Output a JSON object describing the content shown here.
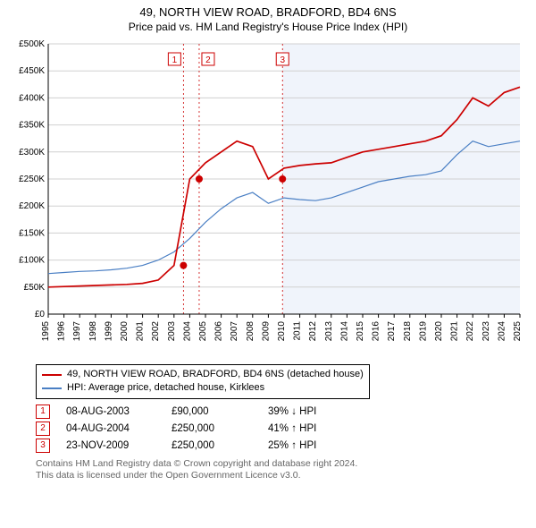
{
  "title_line1": "49, NORTH VIEW ROAD, BRADFORD, BD4 6NS",
  "title_line2": "Price paid vs. HM Land Registry's House Price Index (HPI)",
  "colors": {
    "red": "#cc0000",
    "blue": "#4a7fc4",
    "grid": "#d0d0d0",
    "band": "#f0f4fb",
    "axis": "#000000",
    "footer": "#666666",
    "bg": "#ffffff"
  },
  "chart": {
    "type": "line",
    "x_years": [
      1995,
      1996,
      1997,
      1998,
      1999,
      2000,
      2001,
      2002,
      2003,
      2004,
      2005,
      2006,
      2007,
      2008,
      2009,
      2010,
      2011,
      2012,
      2013,
      2014,
      2015,
      2016,
      2017,
      2018,
      2019,
      2020,
      2021,
      2022,
      2023,
      2024,
      2025
    ],
    "ylim": [
      0,
      500000
    ],
    "ytick_step": 50000,
    "ytick_labels": [
      "£0",
      "£50K",
      "£100K",
      "£150K",
      "£200K",
      "£250K",
      "£300K",
      "£350K",
      "£400K",
      "£450K",
      "£500K"
    ],
    "red_series": [
      50000,
      51000,
      52000,
      53000,
      54000,
      55000,
      57000,
      63000,
      90000,
      250000,
      280000,
      300000,
      320000,
      310000,
      250000,
      270000,
      275000,
      278000,
      280000,
      290000,
      300000,
      305000,
      310000,
      315000,
      320000,
      330000,
      360000,
      400000,
      385000,
      410000,
      420000
    ],
    "blue_series": [
      75000,
      77000,
      79000,
      80000,
      82000,
      85000,
      90000,
      100000,
      115000,
      140000,
      170000,
      195000,
      215000,
      225000,
      205000,
      215000,
      212000,
      210000,
      215000,
      225000,
      235000,
      245000,
      250000,
      255000,
      258000,
      265000,
      295000,
      320000,
      310000,
      315000,
      320000
    ],
    "markers": [
      {
        "n": "1",
        "year": 2003.6,
        "align": "right"
      },
      {
        "n": "2",
        "year": 2004.6,
        "align": "left"
      },
      {
        "n": "3",
        "year": 2009.9,
        "align": "center"
      }
    ],
    "sale_points": [
      {
        "year": 2003.6,
        "price": 90000
      },
      {
        "year": 2004.6,
        "price": 250000
      },
      {
        "year": 2009.9,
        "price": 250000
      }
    ],
    "line_width_red": 1.7,
    "line_width_blue": 1.2,
    "axis_fontsize": 10,
    "band_start_year": 2009.9
  },
  "legend": [
    {
      "color": "#cc0000",
      "label": "49, NORTH VIEW ROAD, BRADFORD, BD4 6NS (detached house)"
    },
    {
      "color": "#4a7fc4",
      "label": "HPI: Average price, detached house, Kirklees"
    }
  ],
  "events": [
    {
      "n": "1",
      "date": "08-AUG-2003",
      "price": "£90,000",
      "delta": "39% ↓ HPI"
    },
    {
      "n": "2",
      "date": "04-AUG-2004",
      "price": "£250,000",
      "delta": "41% ↑ HPI"
    },
    {
      "n": "3",
      "date": "23-NOV-2009",
      "price": "£250,000",
      "delta": "25% ↑ HPI"
    }
  ],
  "footer_line1": "Contains HM Land Registry data © Crown copyright and database right 2024.",
  "footer_line2": "This data is licensed under the Open Government Licence v3.0."
}
